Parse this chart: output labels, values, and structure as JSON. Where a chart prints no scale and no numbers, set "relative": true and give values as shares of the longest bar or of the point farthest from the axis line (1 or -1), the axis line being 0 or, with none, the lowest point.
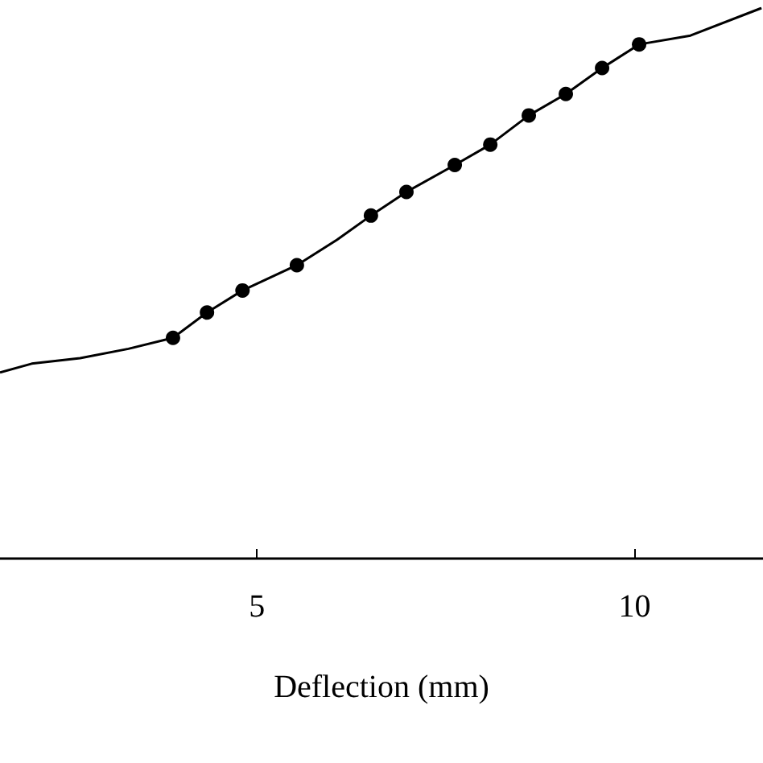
{
  "chart_data": {
    "type": "line",
    "xlabel": "Deflection (mm)",
    "relative": true,
    "xlim": [
      1.6,
      11.7
    ],
    "xticks": [
      5,
      10
    ],
    "grid": false,
    "series": [
      {
        "color": "#000000",
        "marker": "none",
        "x": [
          1.6,
          2.02,
          2.66,
          3.3,
          3.89,
          4.34,
          4.81,
          5.53,
          6.06,
          6.51,
          6.98,
          7.62,
          8.09,
          8.6,
          9.09,
          9.57,
          10.06,
          10.74,
          11.68
        ],
        "values": [
          0.338,
          0.354,
          0.364,
          0.381,
          0.401,
          0.447,
          0.487,
          0.533,
          0.579,
          0.623,
          0.666,
          0.715,
          0.752,
          0.805,
          0.844,
          0.891,
          0.934,
          0.95,
          1.0
        ]
      },
      {
        "type": "scatter",
        "color": "#000000",
        "marker": "circle",
        "x": [
          3.89,
          4.34,
          4.81,
          5.53,
          6.51,
          6.98,
          7.62,
          8.09,
          8.6,
          9.09,
          9.57,
          10.06
        ],
        "values": [
          0.401,
          0.447,
          0.487,
          0.533,
          0.623,
          0.666,
          0.715,
          0.752,
          0.805,
          0.844,
          0.891,
          0.934
        ]
      }
    ]
  }
}
